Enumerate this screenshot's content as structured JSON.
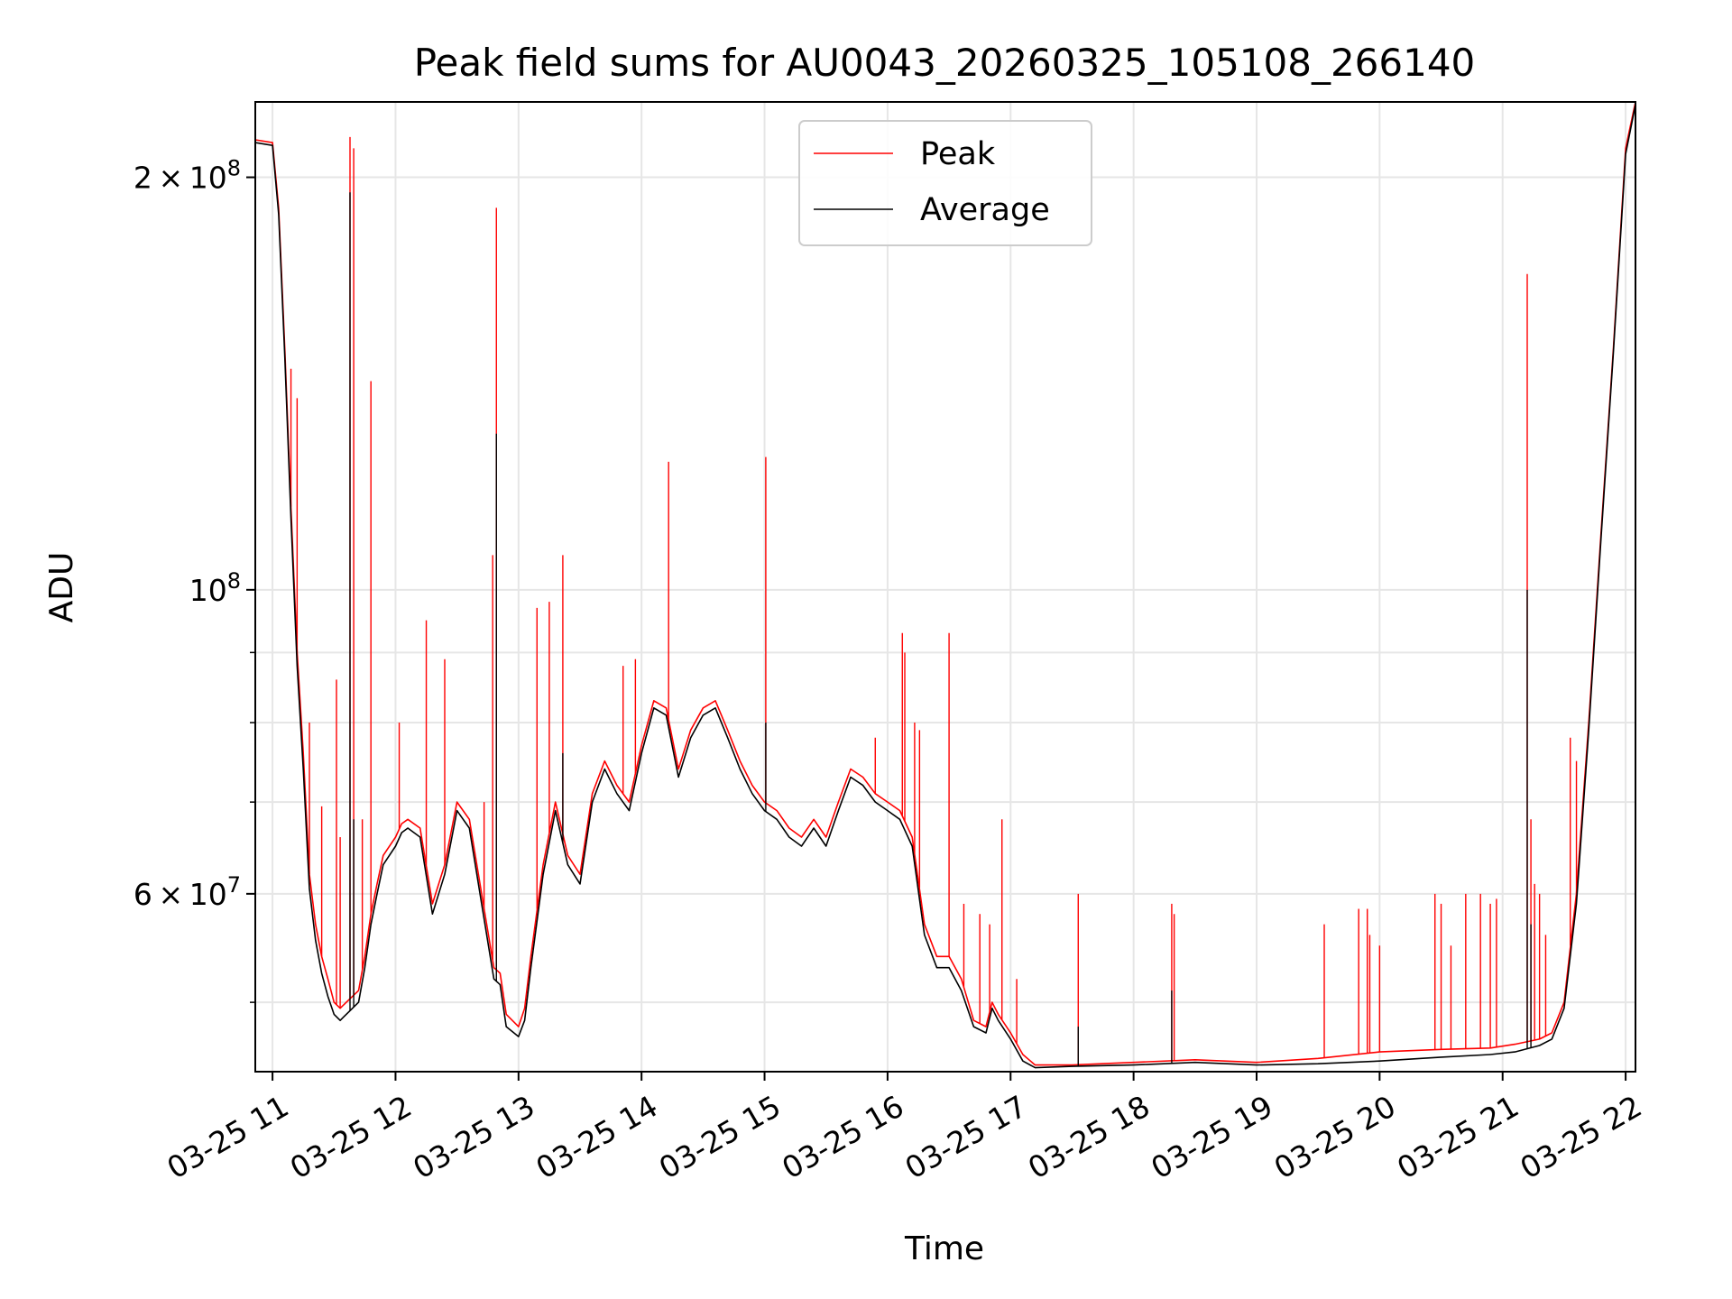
{
  "chart_data": {
    "type": "line",
    "title": "Peak field sums for AU0043_20260325_105108_266140",
    "xlabel": "Time",
    "ylabel": "ADU",
    "yscale": "log",
    "xlim": [
      10.86,
      22.08
    ],
    "ylim": [
      44500000,
      227000000
    ],
    "grid": true,
    "legend_position": "top-center",
    "x_ticks": [
      {
        "value": 11,
        "label": "03-25 11"
      },
      {
        "value": 12,
        "label": "03-25 12"
      },
      {
        "value": 13,
        "label": "03-25 13"
      },
      {
        "value": 14,
        "label": "03-25 14"
      },
      {
        "value": 15,
        "label": "03-25 15"
      },
      {
        "value": 16,
        "label": "03-25 16"
      },
      {
        "value": 17,
        "label": "03-25 17"
      },
      {
        "value": 18,
        "label": "03-25 18"
      },
      {
        "value": 19,
        "label": "03-25 19"
      },
      {
        "value": 20,
        "label": "03-25 20"
      },
      {
        "value": 21,
        "label": "03-25 21"
      },
      {
        "value": 22,
        "label": "03-25 22"
      }
    ],
    "y_ticks": [
      {
        "value": 60000000,
        "mantissa": "6",
        "base": "10",
        "exp": "7"
      },
      {
        "value": 100000000,
        "mantissa": "",
        "base": "10",
        "exp": "8"
      },
      {
        "value": 200000000,
        "mantissa": "2",
        "base": "10",
        "exp": "8"
      }
    ],
    "y_minor_ticks": [
      50000000,
      70000000,
      80000000,
      90000000
    ],
    "series": [
      {
        "name": "Peak",
        "color": "#ff0000",
        "x": [
          10.86,
          11.0,
          11.05,
          11.1,
          11.15,
          11.2,
          11.25,
          11.3,
          11.35,
          11.4,
          11.45,
          11.5,
          11.55,
          11.6,
          11.7,
          11.75,
          11.8,
          11.85,
          11.9,
          12.0,
          12.05,
          12.1,
          12.2,
          12.3,
          12.4,
          12.5,
          12.6,
          12.7,
          12.8,
          12.85,
          12.9,
          13.0,
          13.05,
          13.1,
          13.2,
          13.3,
          13.4,
          13.5,
          13.6,
          13.7,
          13.8,
          13.9,
          14.0,
          14.1,
          14.2,
          14.3,
          14.4,
          14.5,
          14.6,
          14.7,
          14.8,
          14.9,
          15.0,
          15.1,
          15.2,
          15.3,
          15.4,
          15.5,
          15.6,
          15.7,
          15.8,
          15.9,
          16.0,
          16.1,
          16.2,
          16.3,
          16.4,
          16.5,
          16.6,
          16.7,
          16.8,
          16.85,
          16.9,
          17.0,
          17.1,
          17.2,
          17.5,
          18.0,
          18.5,
          19.0,
          19.5,
          20.0,
          20.5,
          20.9,
          21.1,
          21.3,
          21.4,
          21.5,
          21.6,
          21.7,
          21.8,
          21.9,
          22.0,
          22.08
        ],
        "values": [
          213000000,
          212000000,
          190000000,
          150000000,
          115000000,
          90000000,
          76000000,
          62000000,
          57000000,
          54000000,
          52000000,
          50000000,
          49500000,
          50000000,
          51000000,
          54000000,
          58000000,
          61000000,
          64000000,
          66000000,
          67500000,
          68000000,
          67000000,
          59000000,
          63000000,
          70000000,
          68000000,
          60000000,
          53000000,
          52500000,
          49000000,
          48000000,
          49500000,
          54000000,
          63000000,
          70000000,
          64000000,
          62000000,
          71000000,
          75000000,
          72000000,
          70000000,
          77000000,
          83000000,
          82000000,
          74000000,
          79000000,
          82000000,
          83000000,
          79000000,
          75000000,
          72000000,
          70000000,
          69000000,
          67000000,
          66000000,
          68000000,
          66000000,
          70000000,
          74000000,
          73000000,
          71000000,
          70000000,
          69000000,
          66000000,
          57000000,
          54000000,
          54000000,
          52000000,
          48500000,
          48000000,
          50000000,
          49000000,
          47500000,
          45800000,
          45000000,
          45000000,
          45200000,
          45400000,
          45200000,
          45500000,
          46000000,
          46200000,
          46300000,
          46600000,
          47000000,
          47500000,
          50000000,
          60000000,
          80000000,
          110000000,
          150000000,
          210000000,
          227000000
        ],
        "spikes": [
          {
            "x": 11.15,
            "value": 145000000
          },
          {
            "x": 11.2,
            "value": 138000000
          },
          {
            "x": 11.3,
            "value": 80000000
          },
          {
            "x": 11.4,
            "value": 69500000
          },
          {
            "x": 11.52,
            "value": 86000000
          },
          {
            "x": 11.55,
            "value": 66000000
          },
          {
            "x": 11.63,
            "value": 214000000
          },
          {
            "x": 11.66,
            "value": 210000000
          },
          {
            "x": 11.73,
            "value": 68000000
          },
          {
            "x": 11.8,
            "value": 142000000
          },
          {
            "x": 12.03,
            "value": 80000000
          },
          {
            "x": 12.25,
            "value": 95000000
          },
          {
            "x": 12.4,
            "value": 89000000
          },
          {
            "x": 12.72,
            "value": 70000000
          },
          {
            "x": 12.79,
            "value": 106000000
          },
          {
            "x": 12.82,
            "value": 190000000
          },
          {
            "x": 13.15,
            "value": 97000000
          },
          {
            "x": 13.25,
            "value": 98000000
          },
          {
            "x": 13.36,
            "value": 106000000
          },
          {
            "x": 13.85,
            "value": 88000000
          },
          {
            "x": 13.95,
            "value": 89000000
          },
          {
            "x": 14.22,
            "value": 124000000
          },
          {
            "x": 15.01,
            "value": 125000000
          },
          {
            "x": 15.9,
            "value": 78000000
          },
          {
            "x": 16.12,
            "value": 93000000
          },
          {
            "x": 16.14,
            "value": 90000000
          },
          {
            "x": 16.22,
            "value": 80000000
          },
          {
            "x": 16.26,
            "value": 79000000
          },
          {
            "x": 16.5,
            "value": 93000000
          },
          {
            "x": 16.62,
            "value": 59000000
          },
          {
            "x": 16.75,
            "value": 58000000
          },
          {
            "x": 16.83,
            "value": 57000000
          },
          {
            "x": 16.93,
            "value": 68000000
          },
          {
            "x": 17.05,
            "value": 52000000
          },
          {
            "x": 17.55,
            "value": 60000000
          },
          {
            "x": 18.31,
            "value": 59000000
          },
          {
            "x": 18.33,
            "value": 58000000
          },
          {
            "x": 19.55,
            "value": 57000000
          },
          {
            "x": 19.83,
            "value": 58500000
          },
          {
            "x": 19.9,
            "value": 58500000
          },
          {
            "x": 19.92,
            "value": 56000000
          },
          {
            "x": 20.0,
            "value": 55000000
          },
          {
            "x": 20.45,
            "value": 60000000
          },
          {
            "x": 20.5,
            "value": 59000000
          },
          {
            "x": 20.58,
            "value": 55000000
          },
          {
            "x": 20.7,
            "value": 60000000
          },
          {
            "x": 20.82,
            "value": 60000000
          },
          {
            "x": 20.9,
            "value": 59000000
          },
          {
            "x": 20.95,
            "value": 59500000
          },
          {
            "x": 21.2,
            "value": 170000000
          },
          {
            "x": 21.23,
            "value": 68000000
          },
          {
            "x": 21.26,
            "value": 61000000
          },
          {
            "x": 21.3,
            "value": 60000000
          },
          {
            "x": 21.35,
            "value": 56000000
          },
          {
            "x": 21.55,
            "value": 78000000
          },
          {
            "x": 21.6,
            "value": 75000000
          }
        ]
      },
      {
        "name": "Average",
        "color": "#000000",
        "x": [
          10.86,
          11.0,
          11.05,
          11.1,
          11.15,
          11.2,
          11.25,
          11.3,
          11.35,
          11.4,
          11.45,
          11.5,
          11.55,
          11.6,
          11.7,
          11.75,
          11.8,
          11.85,
          11.9,
          12.0,
          12.05,
          12.1,
          12.2,
          12.3,
          12.4,
          12.5,
          12.6,
          12.7,
          12.8,
          12.85,
          12.9,
          13.0,
          13.05,
          13.1,
          13.2,
          13.3,
          13.4,
          13.5,
          13.6,
          13.7,
          13.8,
          13.9,
          14.0,
          14.1,
          14.2,
          14.3,
          14.4,
          14.5,
          14.6,
          14.7,
          14.8,
          14.9,
          15.0,
          15.1,
          15.2,
          15.3,
          15.4,
          15.5,
          15.6,
          15.7,
          15.8,
          15.9,
          16.0,
          16.1,
          16.2,
          16.3,
          16.4,
          16.5,
          16.6,
          16.7,
          16.8,
          16.85,
          16.9,
          17.0,
          17.1,
          17.2,
          17.5,
          18.0,
          18.5,
          19.0,
          19.5,
          20.0,
          20.5,
          20.9,
          21.1,
          21.3,
          21.4,
          21.5,
          21.6,
          21.7,
          21.8,
          21.9,
          22.0,
          22.08
        ],
        "values": [
          212000000,
          211000000,
          188000000,
          148000000,
          113000000,
          88000000,
          74000000,
          60500000,
          55500000,
          52500000,
          50500000,
          49000000,
          48500000,
          49000000,
          50000000,
          53000000,
          57000000,
          60000000,
          63000000,
          65000000,
          66500000,
          67000000,
          66000000,
          58000000,
          62000000,
          69000000,
          67000000,
          59000000,
          52000000,
          51500000,
          48000000,
          47200000,
          48500000,
          53000000,
          62000000,
          69000000,
          63000000,
          61000000,
          70000000,
          74000000,
          71000000,
          69000000,
          76000000,
          82000000,
          81000000,
          73000000,
          78000000,
          81000000,
          82000000,
          78000000,
          74000000,
          71000000,
          69000000,
          68000000,
          66000000,
          65000000,
          67000000,
          65000000,
          69000000,
          73000000,
          72000000,
          70000000,
          69000000,
          68000000,
          65000000,
          56000000,
          53000000,
          53000000,
          51000000,
          48000000,
          47500000,
          49500000,
          48500000,
          47000000,
          45300000,
          44800000,
          44900000,
          45000000,
          45200000,
          45000000,
          45100000,
          45300000,
          45600000,
          45800000,
          46000000,
          46500000,
          47000000,
          49500000,
          59000000,
          79000000,
          109000000,
          149000000,
          208000000,
          226000000
        ],
        "spikes": [
          {
            "x": 11.63,
            "value": 195000000
          },
          {
            "x": 11.66,
            "value": 68000000
          },
          {
            "x": 12.82,
            "value": 130000000
          },
          {
            "x": 13.36,
            "value": 76000000
          },
          {
            "x": 15.01,
            "value": 80000000
          },
          {
            "x": 17.55,
            "value": 48000000
          },
          {
            "x": 18.31,
            "value": 51000000
          },
          {
            "x": 21.2,
            "value": 100000000
          },
          {
            "x": 21.23,
            "value": 57000000
          }
        ]
      }
    ]
  }
}
